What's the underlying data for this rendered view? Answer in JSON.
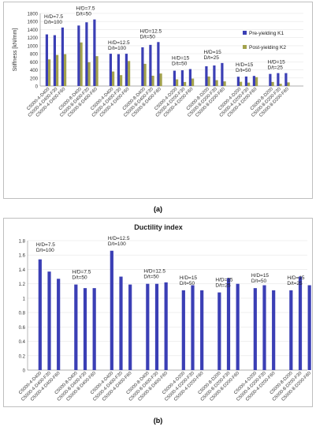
{
  "chart_data": [
    {
      "type": "bar",
      "id": "a",
      "ylabel": "Stiffness [kN/mm]",
      "ylim": [
        0,
        1800
      ],
      "yticks": [
        0,
        200,
        400,
        600,
        800,
        1000,
        1200,
        1400,
        1600,
        1800
      ],
      "legend_position": "top-right",
      "colors": {
        "Pre-yielding K1": "#3b3fb5",
        "Post-yielding K2": "#a3a24c"
      },
      "categories": [
        "C5000-4-D400",
        "C5000-4-D400-F30",
        "C5000-4-D400-F60",
        "C5000-8-D400",
        "C5000-8-D400-F30",
        "C5000-8-D400-F60",
        "C5000-4-D400",
        "C5000-4-D400-F30",
        "C5000-4-D400-F60",
        "C5000-8-D400",
        "C5000-8-D400-F30",
        "C5000-8-D400-F60",
        "C5000-4-D200",
        "C5000-4-D200-F30",
        "C5000-4-D200-F60",
        "C5000-8-D200",
        "C5000-8-D200-F30",
        "C5000-8-D200-F60",
        "C5000-4-D200",
        "C5000-4-D200-F30",
        "C5000-4-D200-F60",
        "C5000-8-D200",
        "C5000-8-D200-F30",
        "C5000-8-D200-F60"
      ],
      "series": [
        {
          "name": "Pre-yielding K1",
          "values": [
            1280,
            1260,
            1450,
            1500,
            1580,
            1650,
            800,
            790,
            800,
            960,
            1020,
            1090,
            380,
            390,
            420,
            490,
            510,
            570,
            230,
            235,
            250,
            300,
            320,
            320
          ]
        },
        {
          "name": "Post-yielding K2",
          "values": [
            660,
            770,
            790,
            1080,
            590,
            740,
            360,
            270,
            620,
            550,
            255,
            310,
            165,
            100,
            185,
            235,
            145,
            115,
            105,
            85,
            220,
            100,
            55,
            90
          ]
        }
      ],
      "groups": [
        {
          "line1": "H/D=7.5",
          "line2": "D/t=100"
        },
        {
          "line1": "H/D=7.5",
          "line2": "D/t=50"
        },
        {
          "line1": "H/D=12.5",
          "line2": "D/t=100"
        },
        {
          "line1": "H/D=12.5",
          "line2": "D/t=50"
        },
        {
          "line1": "H/D=15",
          "line2": "D/t=50"
        },
        {
          "line1": "H/D=15",
          "line2": "D/t=25"
        },
        {
          "line1": "H/D=15",
          "line2": "D/t=50"
        },
        {
          "line1": "H/D=15",
          "line2": "D/t=25"
        }
      ],
      "caption": "(a)"
    },
    {
      "type": "bar",
      "id": "b",
      "title": "Ductility index",
      "ylim": [
        0,
        1.8
      ],
      "yticks": [
        "0",
        "0.2",
        "0.4",
        "0.6",
        "0.8",
        "1",
        "1.2",
        "1.4",
        "1.6",
        "1.8"
      ],
      "color": "#3b3fb5",
      "categories": [
        "C5000-4-D400",
        "C5000-4-D400-F30",
        "C5000-4-D400-F60",
        "C5000-8-D400",
        "C5000-8-D400-F30",
        "C5000-8-D400-F60",
        "C5000-4-D400",
        "C5000-4-D400-F30",
        "C5000-4-D400-F60",
        "C5000-8-D400",
        "C5000-8-D400-F30",
        "C5000-8-D400-F60",
        "C5000-4-D200",
        "C5000-4-D200-F30",
        "C5000-4-D200-F60",
        "C5000-8-D200",
        "C5000-8-D200-F30",
        "C5000-8-D200-F60",
        "C5000-4-D200",
        "C5000-4-D200-F30",
        "C5000-4-D200-F60",
        "C5000-8-D200",
        "C5000-8-D200-F30",
        "C5000-8-D200-F60"
      ],
      "series": [
        {
          "values": [
            1.54,
            1.37,
            1.27,
            1.19,
            1.14,
            1.14,
            1.66,
            1.3,
            1.19,
            1.2,
            1.2,
            1.22,
            1.11,
            1.18,
            1.11,
            1.08,
            1.28,
            1.2,
            1.14,
            1.18,
            1.11,
            1.11,
            1.3,
            1.18
          ]
        }
      ],
      "groups": [
        {
          "line1": "H/D=7.5",
          "line2": "D/t=100"
        },
        {
          "line1": "H/D=7.5",
          "line2": "D/t=50"
        },
        {
          "line1": "H/D=12.5",
          "line2": "D/t=100"
        },
        {
          "line1": "H/D=12.5",
          "line2": "D/t=50"
        },
        {
          "line1": "H/D=15",
          "line2": "D/t=50"
        },
        {
          "line1": "H/D=15",
          "line2": "D/t=25"
        },
        {
          "line1": "H/D=15",
          "line2": "D/t=50"
        },
        {
          "line1": "H/D=15",
          "line2": "D/t=25"
        }
      ],
      "caption": "(b)"
    }
  ]
}
